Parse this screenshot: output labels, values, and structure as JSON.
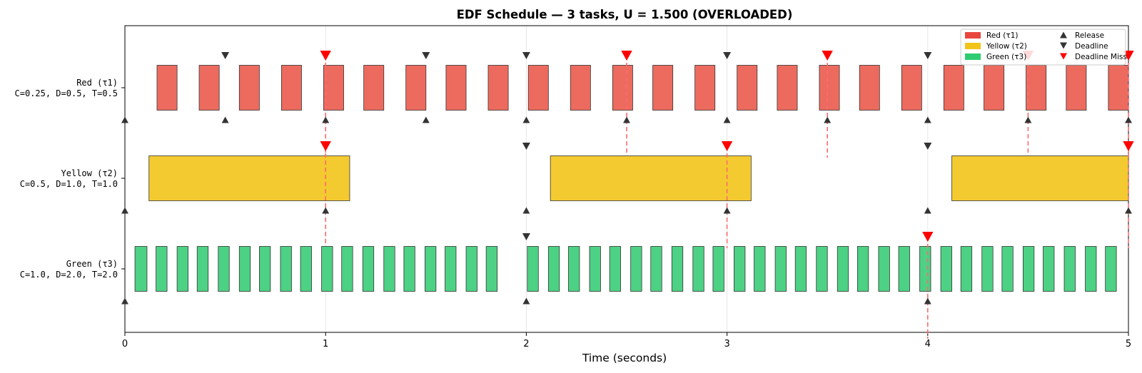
{
  "chart_data": {
    "type": "gantt",
    "title": "EDF Schedule — 3 tasks, U = 1.500 (OVERLOADED)",
    "xlabel": "Time (seconds)",
    "xlim": [
      0,
      5
    ],
    "xticks": [
      0,
      1,
      2,
      3,
      4,
      5
    ],
    "grid": "vertical",
    "legend_position": "top-right",
    "tasks": [
      {
        "name": "Red (τ1)",
        "params": "C=0.25, D=0.5, T=0.5",
        "color": "#ec6b5e",
        "segments": [
          [
            0.16,
            0.26
          ],
          [
            0.37,
            0.47
          ],
          [
            0.57,
            0.67
          ],
          [
            0.78,
            0.88
          ],
          [
            0.99,
            1.09
          ],
          [
            1.19,
            1.29
          ],
          [
            1.4,
            1.5
          ],
          [
            1.6,
            1.7
          ],
          [
            1.81,
            1.91
          ],
          [
            2.01,
            2.11
          ],
          [
            2.22,
            2.32
          ],
          [
            2.43,
            2.53
          ],
          [
            2.63,
            2.73
          ],
          [
            2.84,
            2.94
          ],
          [
            3.05,
            3.15
          ],
          [
            3.25,
            3.35
          ],
          [
            3.46,
            3.56
          ],
          [
            3.66,
            3.76
          ],
          [
            3.87,
            3.97
          ],
          [
            4.08,
            4.18
          ],
          [
            4.28,
            4.38
          ],
          [
            4.49,
            4.59
          ],
          [
            4.69,
            4.79
          ],
          [
            4.9,
            5.0
          ]
        ],
        "releases": [
          0,
          0.5,
          1,
          1.5,
          2,
          2.5,
          3,
          3.5,
          4,
          4.5,
          5
        ],
        "deadlines": [
          0.5,
          1,
          1.5,
          2,
          2.5,
          3,
          3.5,
          4,
          4.5,
          5
        ],
        "deadline_misses": [
          1,
          2.5,
          3.5,
          4.5,
          5
        ]
      },
      {
        "name": "Yellow (τ2)",
        "params": "C=0.5, D=1.0, T=1.0",
        "color": "#f3ca30",
        "segments": [
          [
            0.12,
            1.12
          ],
          [
            2.12,
            3.12
          ],
          [
            4.12,
            5.0
          ]
        ],
        "releases": [
          0,
          1,
          2,
          3,
          4,
          5
        ],
        "deadlines": [
          1,
          2,
          3,
          4,
          5
        ],
        "deadline_misses": [
          1,
          3,
          5
        ]
      },
      {
        "name": "Green (τ3)",
        "params": "C=1.0, D=2.0, T=2.0",
        "color": "#4dd184",
        "segments": [
          [
            0.05,
            0.11
          ],
          [
            0.155,
            0.21
          ],
          [
            0.26,
            0.315
          ],
          [
            0.36,
            0.415
          ],
          [
            0.465,
            0.52
          ],
          [
            0.57,
            0.625
          ],
          [
            0.67,
            0.725
          ],
          [
            0.775,
            0.83
          ],
          [
            0.875,
            0.93
          ],
          [
            0.98,
            1.035
          ],
          [
            1.08,
            1.135
          ],
          [
            1.185,
            1.24
          ],
          [
            1.29,
            1.345
          ],
          [
            1.39,
            1.445
          ],
          [
            1.495,
            1.55
          ],
          [
            1.595,
            1.65
          ],
          [
            1.7,
            1.755
          ],
          [
            1.8,
            1.855
          ],
          [
            2.005,
            2.06
          ],
          [
            2.11,
            2.165
          ],
          [
            2.21,
            2.265
          ],
          [
            2.315,
            2.37
          ],
          [
            2.415,
            2.47
          ],
          [
            2.52,
            2.575
          ],
          [
            2.62,
            2.675
          ],
          [
            2.725,
            2.78
          ],
          [
            2.83,
            2.885
          ],
          [
            2.93,
            2.985
          ],
          [
            3.035,
            3.09
          ],
          [
            3.135,
            3.19
          ],
          [
            3.24,
            3.295
          ],
          [
            3.34,
            3.395
          ],
          [
            3.445,
            3.5
          ],
          [
            3.55,
            3.605
          ],
          [
            3.65,
            3.705
          ],
          [
            3.755,
            3.81
          ],
          [
            3.855,
            3.91
          ],
          [
            3.96,
            4.015
          ],
          [
            4.065,
            4.12
          ],
          [
            4.165,
            4.22
          ],
          [
            4.27,
            4.325
          ],
          [
            4.37,
            4.425
          ],
          [
            4.475,
            4.53
          ],
          [
            4.575,
            4.63
          ],
          [
            4.68,
            4.735
          ],
          [
            4.785,
            4.84
          ],
          [
            4.885,
            4.94
          ]
        ],
        "releases": [
          0,
          2,
          4
        ],
        "deadlines": [
          2,
          4
        ],
        "deadline_misses": [
          4
        ]
      }
    ],
    "legend": [
      {
        "label": "Red (τ1)",
        "kind": "patch",
        "color": "#e8473e"
      },
      {
        "label": "Yellow (τ2)",
        "kind": "patch",
        "color": "#f2c418"
      },
      {
        "label": "Green (τ3)",
        "kind": "patch",
        "color": "#2ecc71"
      },
      {
        "label": "Release",
        "kind": "release"
      },
      {
        "label": "Deadline",
        "kind": "deadline"
      },
      {
        "label": "Deadline Miss",
        "kind": "miss"
      }
    ]
  },
  "colors": {
    "marker": "#333333",
    "miss": "#ff0000",
    "miss_line": "#ff6b6b",
    "grid": "#e6e6e6"
  }
}
